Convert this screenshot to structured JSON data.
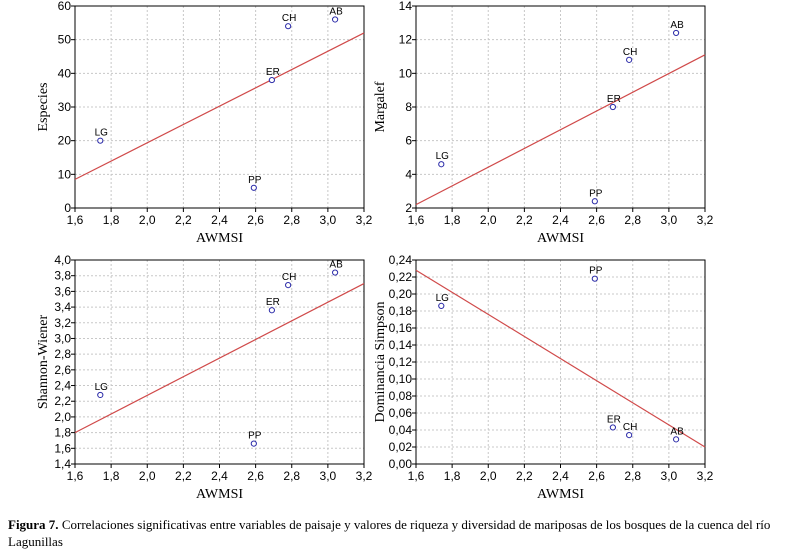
{
  "caption": {
    "label": "Figura 7.",
    "text": "Correlaciones significativas entre variables de paisaje y valores de riqueza y diversidad de mariposas de los bosques de la cuenca del río Lagunillas"
  },
  "colors": {
    "fit_line": "#d04a4a",
    "points": "#2a2aa8",
    "grid": "#c8c8c8"
  },
  "chart_data": [
    {
      "type": "scatter",
      "xlabel": "AWMSI",
      "ylabel": "Especies",
      "xlim": [
        1.6,
        3.2
      ],
      "ylim": [
        0,
        60
      ],
      "xticks": [
        "1,6",
        "1,8",
        "2,0",
        "2,2",
        "2,4",
        "2,6",
        "2,8",
        "3,0",
        "3,2"
      ],
      "yticks": [
        "0",
        "10",
        "20",
        "30",
        "40",
        "50",
        "60"
      ],
      "grid": true,
      "points": [
        {
          "label": "LG",
          "x": 1.74,
          "y": 20
        },
        {
          "label": "PP",
          "x": 2.59,
          "y": 6
        },
        {
          "label": "ER",
          "x": 2.69,
          "y": 38
        },
        {
          "label": "CH",
          "x": 2.78,
          "y": 54
        },
        {
          "label": "AB",
          "x": 3.04,
          "y": 56
        }
      ],
      "fit": [
        [
          1.6,
          8.5
        ],
        [
          3.2,
          52
        ]
      ]
    },
    {
      "type": "scatter",
      "xlabel": "AWMSI",
      "ylabel": "Margalef",
      "xlim": [
        1.6,
        3.2
      ],
      "ylim": [
        2,
        14
      ],
      "xticks": [
        "1,6",
        "1,8",
        "2,0",
        "2,2",
        "2,4",
        "2,6",
        "2,8",
        "3,0",
        "3,2"
      ],
      "yticks": [
        "2",
        "4",
        "6",
        "8",
        "10",
        "12",
        "14"
      ],
      "grid": true,
      "points": [
        {
          "label": "LG",
          "x": 1.74,
          "y": 4.6
        },
        {
          "label": "PP",
          "x": 2.59,
          "y": 2.4
        },
        {
          "label": "ER",
          "x": 2.69,
          "y": 8.0
        },
        {
          "label": "CH",
          "x": 2.78,
          "y": 10.8
        },
        {
          "label": "AB",
          "x": 3.04,
          "y": 12.4
        }
      ],
      "fit": [
        [
          1.6,
          2.2
        ],
        [
          3.2,
          11.1
        ]
      ]
    },
    {
      "type": "scatter",
      "xlabel": "AWMSI",
      "ylabel": "Shannon-Wiener",
      "xlim": [
        1.6,
        3.2
      ],
      "ylim": [
        1.4,
        4.0
      ],
      "xticks": [
        "1,6",
        "1,8",
        "2,0",
        "2,2",
        "2,4",
        "2,6",
        "2,8",
        "3,0",
        "3,2"
      ],
      "yticks": [
        "1,4",
        "1,6",
        "1,8",
        "2,0",
        "2,2",
        "2,4",
        "2,6",
        "2,8",
        "3,0",
        "3,2",
        "3,4",
        "3,6",
        "3,8",
        "4,0"
      ],
      "grid": true,
      "points": [
        {
          "label": "LG",
          "x": 1.74,
          "y": 2.28
        },
        {
          "label": "PP",
          "x": 2.59,
          "y": 1.66
        },
        {
          "label": "ER",
          "x": 2.69,
          "y": 3.36
        },
        {
          "label": "CH",
          "x": 2.78,
          "y": 3.68
        },
        {
          "label": "AB",
          "x": 3.04,
          "y": 3.84
        }
      ],
      "fit": [
        [
          1.6,
          1.8
        ],
        [
          3.2,
          3.7
        ]
      ]
    },
    {
      "type": "scatter",
      "xlabel": "AWMSI",
      "ylabel": "Dominancia Simpson",
      "xlim": [
        1.6,
        3.2
      ],
      "ylim": [
        0,
        0.24
      ],
      "xticks": [
        "1,6",
        "1,8",
        "2,0",
        "2,2",
        "2,4",
        "2,6",
        "2,8",
        "3,0",
        "3,2"
      ],
      "yticks": [
        "0,00",
        "0,02",
        "0,04",
        "0,06",
        "0,08",
        "0,10",
        "0,12",
        "0,14",
        "0,16",
        "0,18",
        "0,20",
        "0,22",
        "0,24"
      ],
      "grid": true,
      "points": [
        {
          "label": "LG",
          "x": 1.74,
          "y": 0.186
        },
        {
          "label": "PP",
          "x": 2.59,
          "y": 0.218
        },
        {
          "label": "ER",
          "x": 2.69,
          "y": 0.043
        },
        {
          "label": "CH",
          "x": 2.78,
          "y": 0.034
        },
        {
          "label": "AB",
          "x": 3.04,
          "y": 0.029
        }
      ],
      "fit": [
        [
          1.6,
          0.228
        ],
        [
          3.2,
          0.02
        ]
      ]
    }
  ]
}
